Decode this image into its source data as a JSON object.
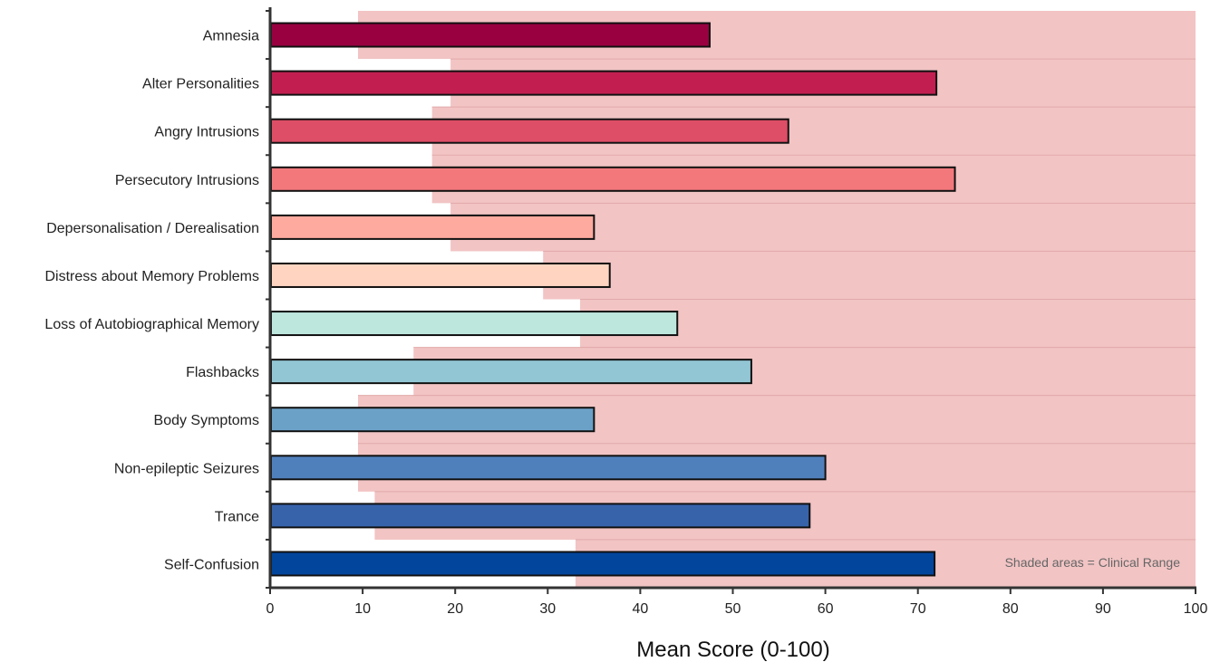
{
  "chart_data": {
    "type": "bar",
    "orientation": "horizontal",
    "categories": [
      "Amnesia",
      "Alter Personalities",
      "Angry Intrusions",
      "Persecutory Intrusions",
      "Depersonalisation / Derealisation",
      "Distress about Memory Problems",
      "Loss of Autobiographical Memory",
      "Flashbacks",
      "Body Symptoms",
      "Non-epileptic Seizures",
      "Trance",
      "Self-Confusion"
    ],
    "values": [
      47.5,
      72,
      56,
      74,
      35,
      36.7,
      44,
      52,
      35,
      60,
      58.3,
      71.8
    ],
    "clinical_threshold": [
      9.5,
      19.5,
      17.5,
      17.5,
      19.5,
      29.5,
      33.5,
      15.5,
      9.5,
      9.5,
      11.3,
      33
    ],
    "bar_colors": [
      "#990040",
      "#c21f50",
      "#de4e66",
      "#f2787c",
      "#ffaa9f",
      "#ffd4c1",
      "#bde6dd",
      "#93c6d4",
      "#6ca1c7",
      "#5080bc",
      "#3763ab",
      "#02459c"
    ],
    "clinical_color": "#f2c4c4",
    "xlabel": "Mean Score (0-100)",
    "ylabel": "",
    "xlim": [
      0,
      100
    ],
    "xticks": [
      0,
      10,
      20,
      30,
      40,
      50,
      60,
      70,
      80,
      90,
      100
    ],
    "annotation": "Shaded areas = Clinical Range",
    "grid": false,
    "legend": "none"
  }
}
